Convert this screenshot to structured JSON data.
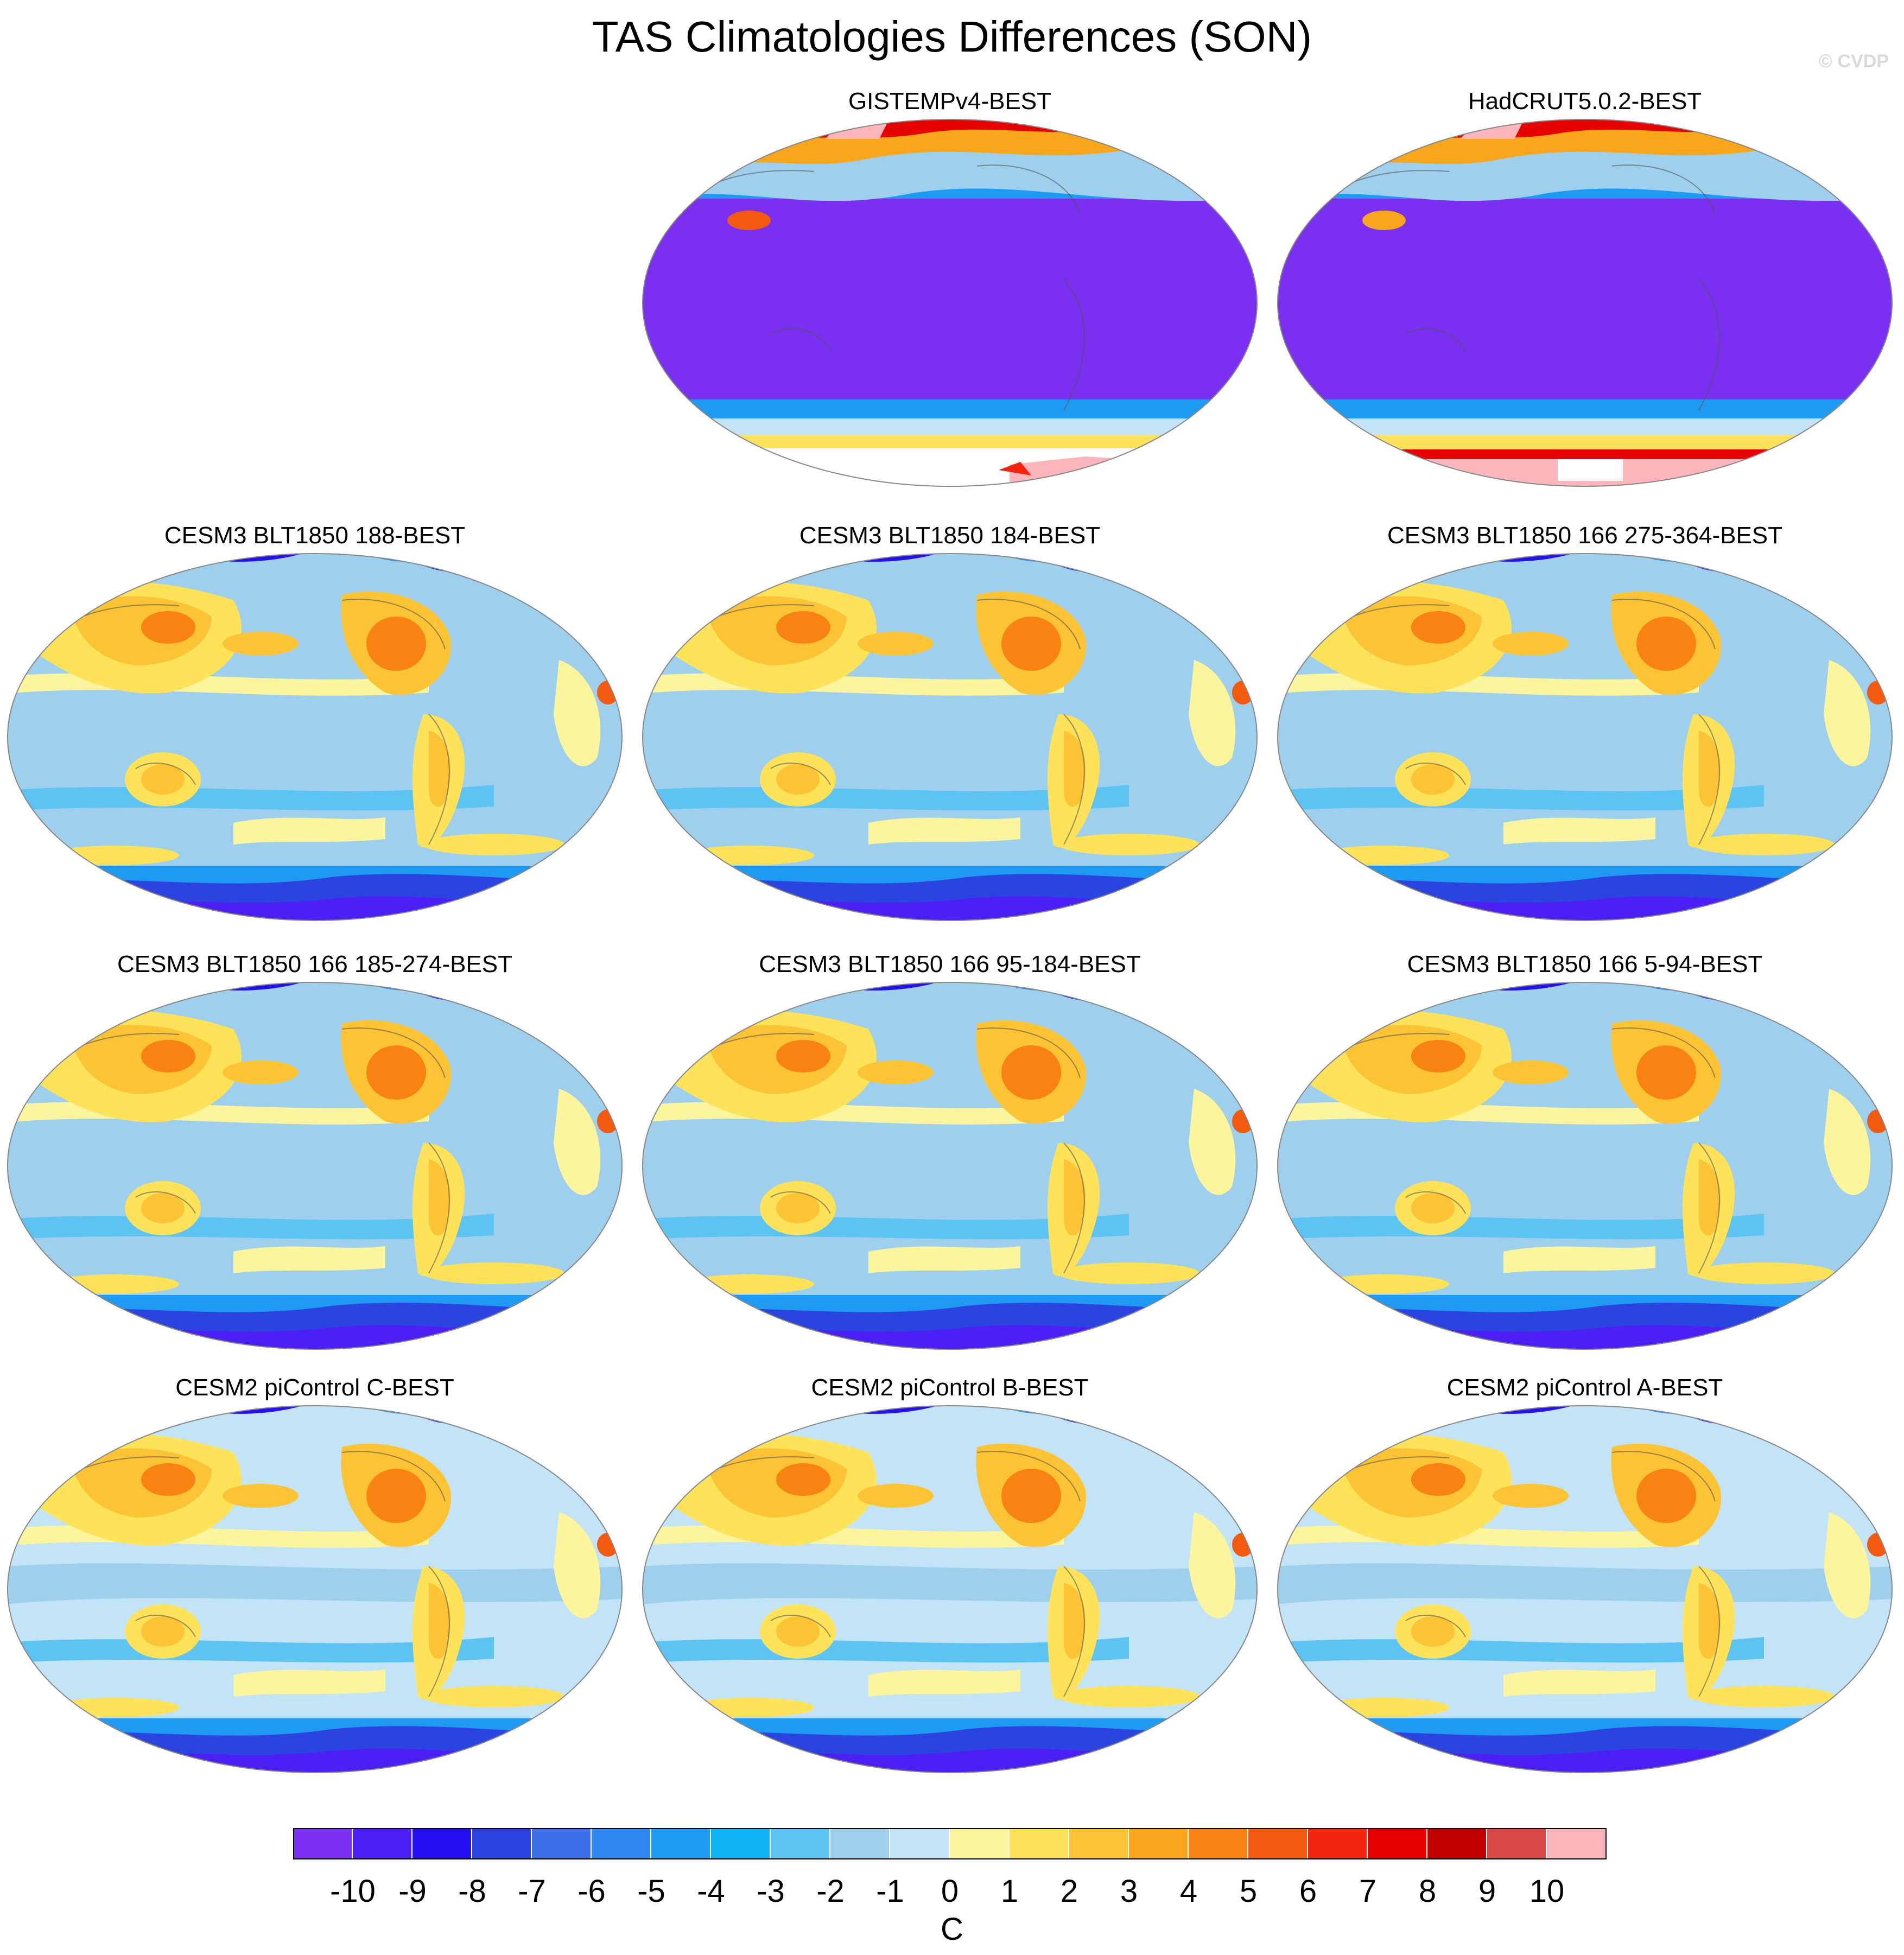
{
  "title": "TAS Climatologies Differences (SON)",
  "credit": "© CVDP",
  "panels": [
    {
      "id": "gistemp",
      "label": "GISTEMPv4-BEST",
      "style": "obs-gis"
    },
    {
      "id": "hadcrut",
      "label": "HadCRUT5.0.2-BEST",
      "style": "obs-had"
    },
    {
      "id": "blt188",
      "label": "CESM3 BLT1850 188-BEST",
      "style": "model"
    },
    {
      "id": "blt184",
      "label": "CESM3 BLT1850 184-BEST",
      "style": "model"
    },
    {
      "id": "blt166c",
      "label": "CESM3 BLT1850 166 275-364-BEST",
      "style": "model"
    },
    {
      "id": "blt166b",
      "label": "CESM3 BLT1850 166 185-274-BEST",
      "style": "model"
    },
    {
      "id": "blt166a",
      "label": "CESM3 BLT1850 166 95-184-BEST",
      "style": "model"
    },
    {
      "id": "blt166z",
      "label": "CESM3 BLT1850 166 5-94-BEST",
      "style": "model"
    },
    {
      "id": "picC",
      "label": "CESM2 piControl C-BEST",
      "style": "model2"
    },
    {
      "id": "picB",
      "label": "CESM2 piControl B-BEST",
      "style": "model2"
    },
    {
      "id": "picA",
      "label": "CESM2 piControl A-BEST",
      "style": "model2"
    }
  ],
  "colorbar": {
    "unit": "C",
    "tick_labels": [
      "-10",
      "-9",
      "-8",
      "-7",
      "-6",
      "-5",
      "-4",
      "-3",
      "-2",
      "-1",
      "0",
      "1",
      "2",
      "3",
      "4",
      "5",
      "6",
      "7",
      "8",
      "9",
      "10"
    ],
    "colors": [
      "#7b2ff0",
      "#4b1ff5",
      "#2410f0",
      "#2b44e0",
      "#3b6fe8",
      "#2f86ef",
      "#1f9af2",
      "#10b4f5",
      "#5cc3f3",
      "#9ed0ee",
      "#c3e3f7",
      "#fdf59d",
      "#fde25a",
      "#fcc435",
      "#f9a61c",
      "#f88212",
      "#f45a0f",
      "#f4230d",
      "#e60000",
      "#c20000",
      "#d94848",
      "#fcb6bb"
    ]
  }
}
